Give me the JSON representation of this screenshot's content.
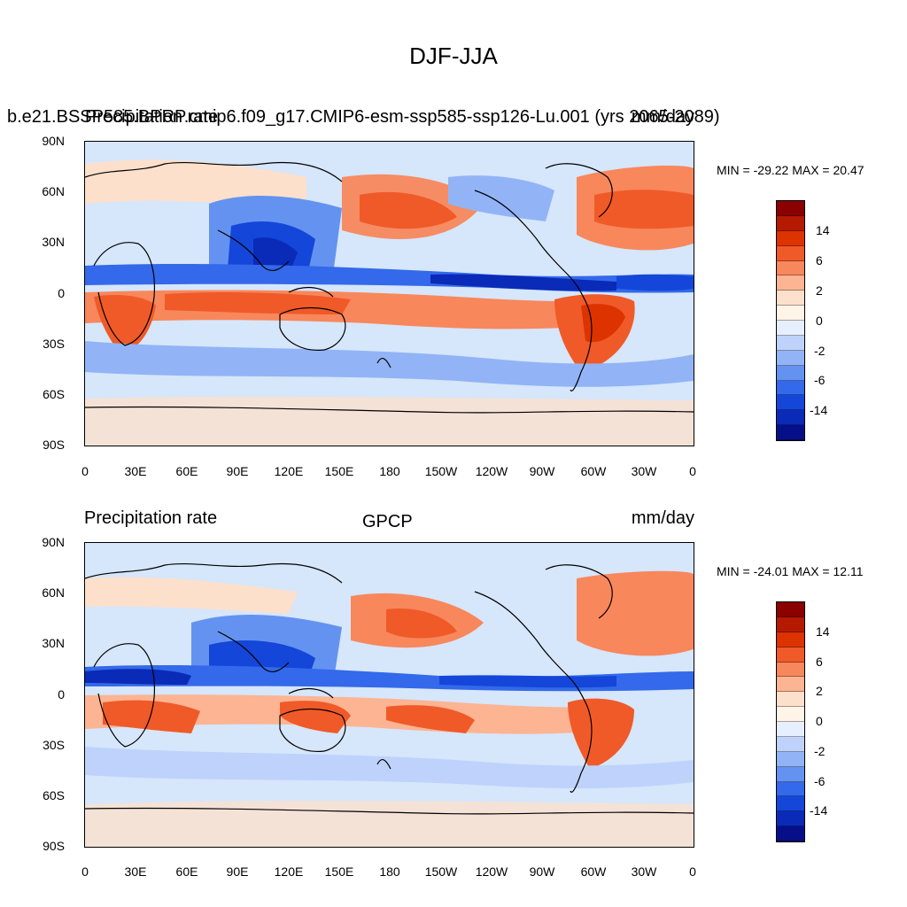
{
  "figure": {
    "title": "DJF-JJA"
  },
  "panels": [
    {
      "left_label": "b.e21.BSSP585.BPRP.cmip6.f09_g17.CMIP6-esm-ssp585-ssp126-Lu.001 (yrs 2065-2089)",
      "left_label_overprint": "Precipitation rate",
      "center_label": "",
      "right_label": "mm/day",
      "minmax": "MIN = -29.22 MAX =  20.47"
    },
    {
      "left_label": "Precipitation rate",
      "center_label": "GPCP",
      "right_label": "mm/day",
      "minmax": "MIN = -24.01 MAX =  12.11"
    }
  ],
  "axes": {
    "lat_labels": [
      "90N",
      "60N",
      "30N",
      "0",
      "30S",
      "60S",
      "90S"
    ],
    "lon_labels": [
      "0",
      "30E",
      "60E",
      "90E",
      "120E",
      "150E",
      "180",
      "150W",
      "120W",
      "90W",
      "60W",
      "30W",
      "0"
    ]
  },
  "colorbar": {
    "labels": [
      "14",
      "6",
      "2",
      "0",
      "-2",
      "-6",
      "-14"
    ],
    "colors": [
      "#8b0000",
      "#b51a00",
      "#dd3300",
      "#f05a28",
      "#f8875c",
      "#fcb492",
      "#fde0cb",
      "#fff4e8",
      "#e6efff",
      "#bed2fb",
      "#92b4f6",
      "#6492f0",
      "#3369ea",
      "#1446d9",
      "#0a2ab8",
      "#060f88"
    ]
  },
  "chart_data": {
    "type": "heatmap",
    "title": "DJF-JJA",
    "units": "mm/day",
    "legend": "right",
    "colorbar_ticks": [
      14,
      6,
      2,
      0,
      -2,
      -6,
      -14
    ],
    "x_range": [
      "0",
      "0"
    ],
    "y_range": [
      "90S",
      "90N"
    ],
    "fields": [
      {
        "name": "b.e21.BSSP585.BPRP.cmip6.f09_g17.CMIP6-esm-ssp585-ssp126-Lu.001 (yrs 2065-2089)",
        "min": -29.22,
        "max": 20.47
      },
      {
        "name": "GPCP",
        "min": -24.01,
        "max": 12.11
      }
    ]
  }
}
